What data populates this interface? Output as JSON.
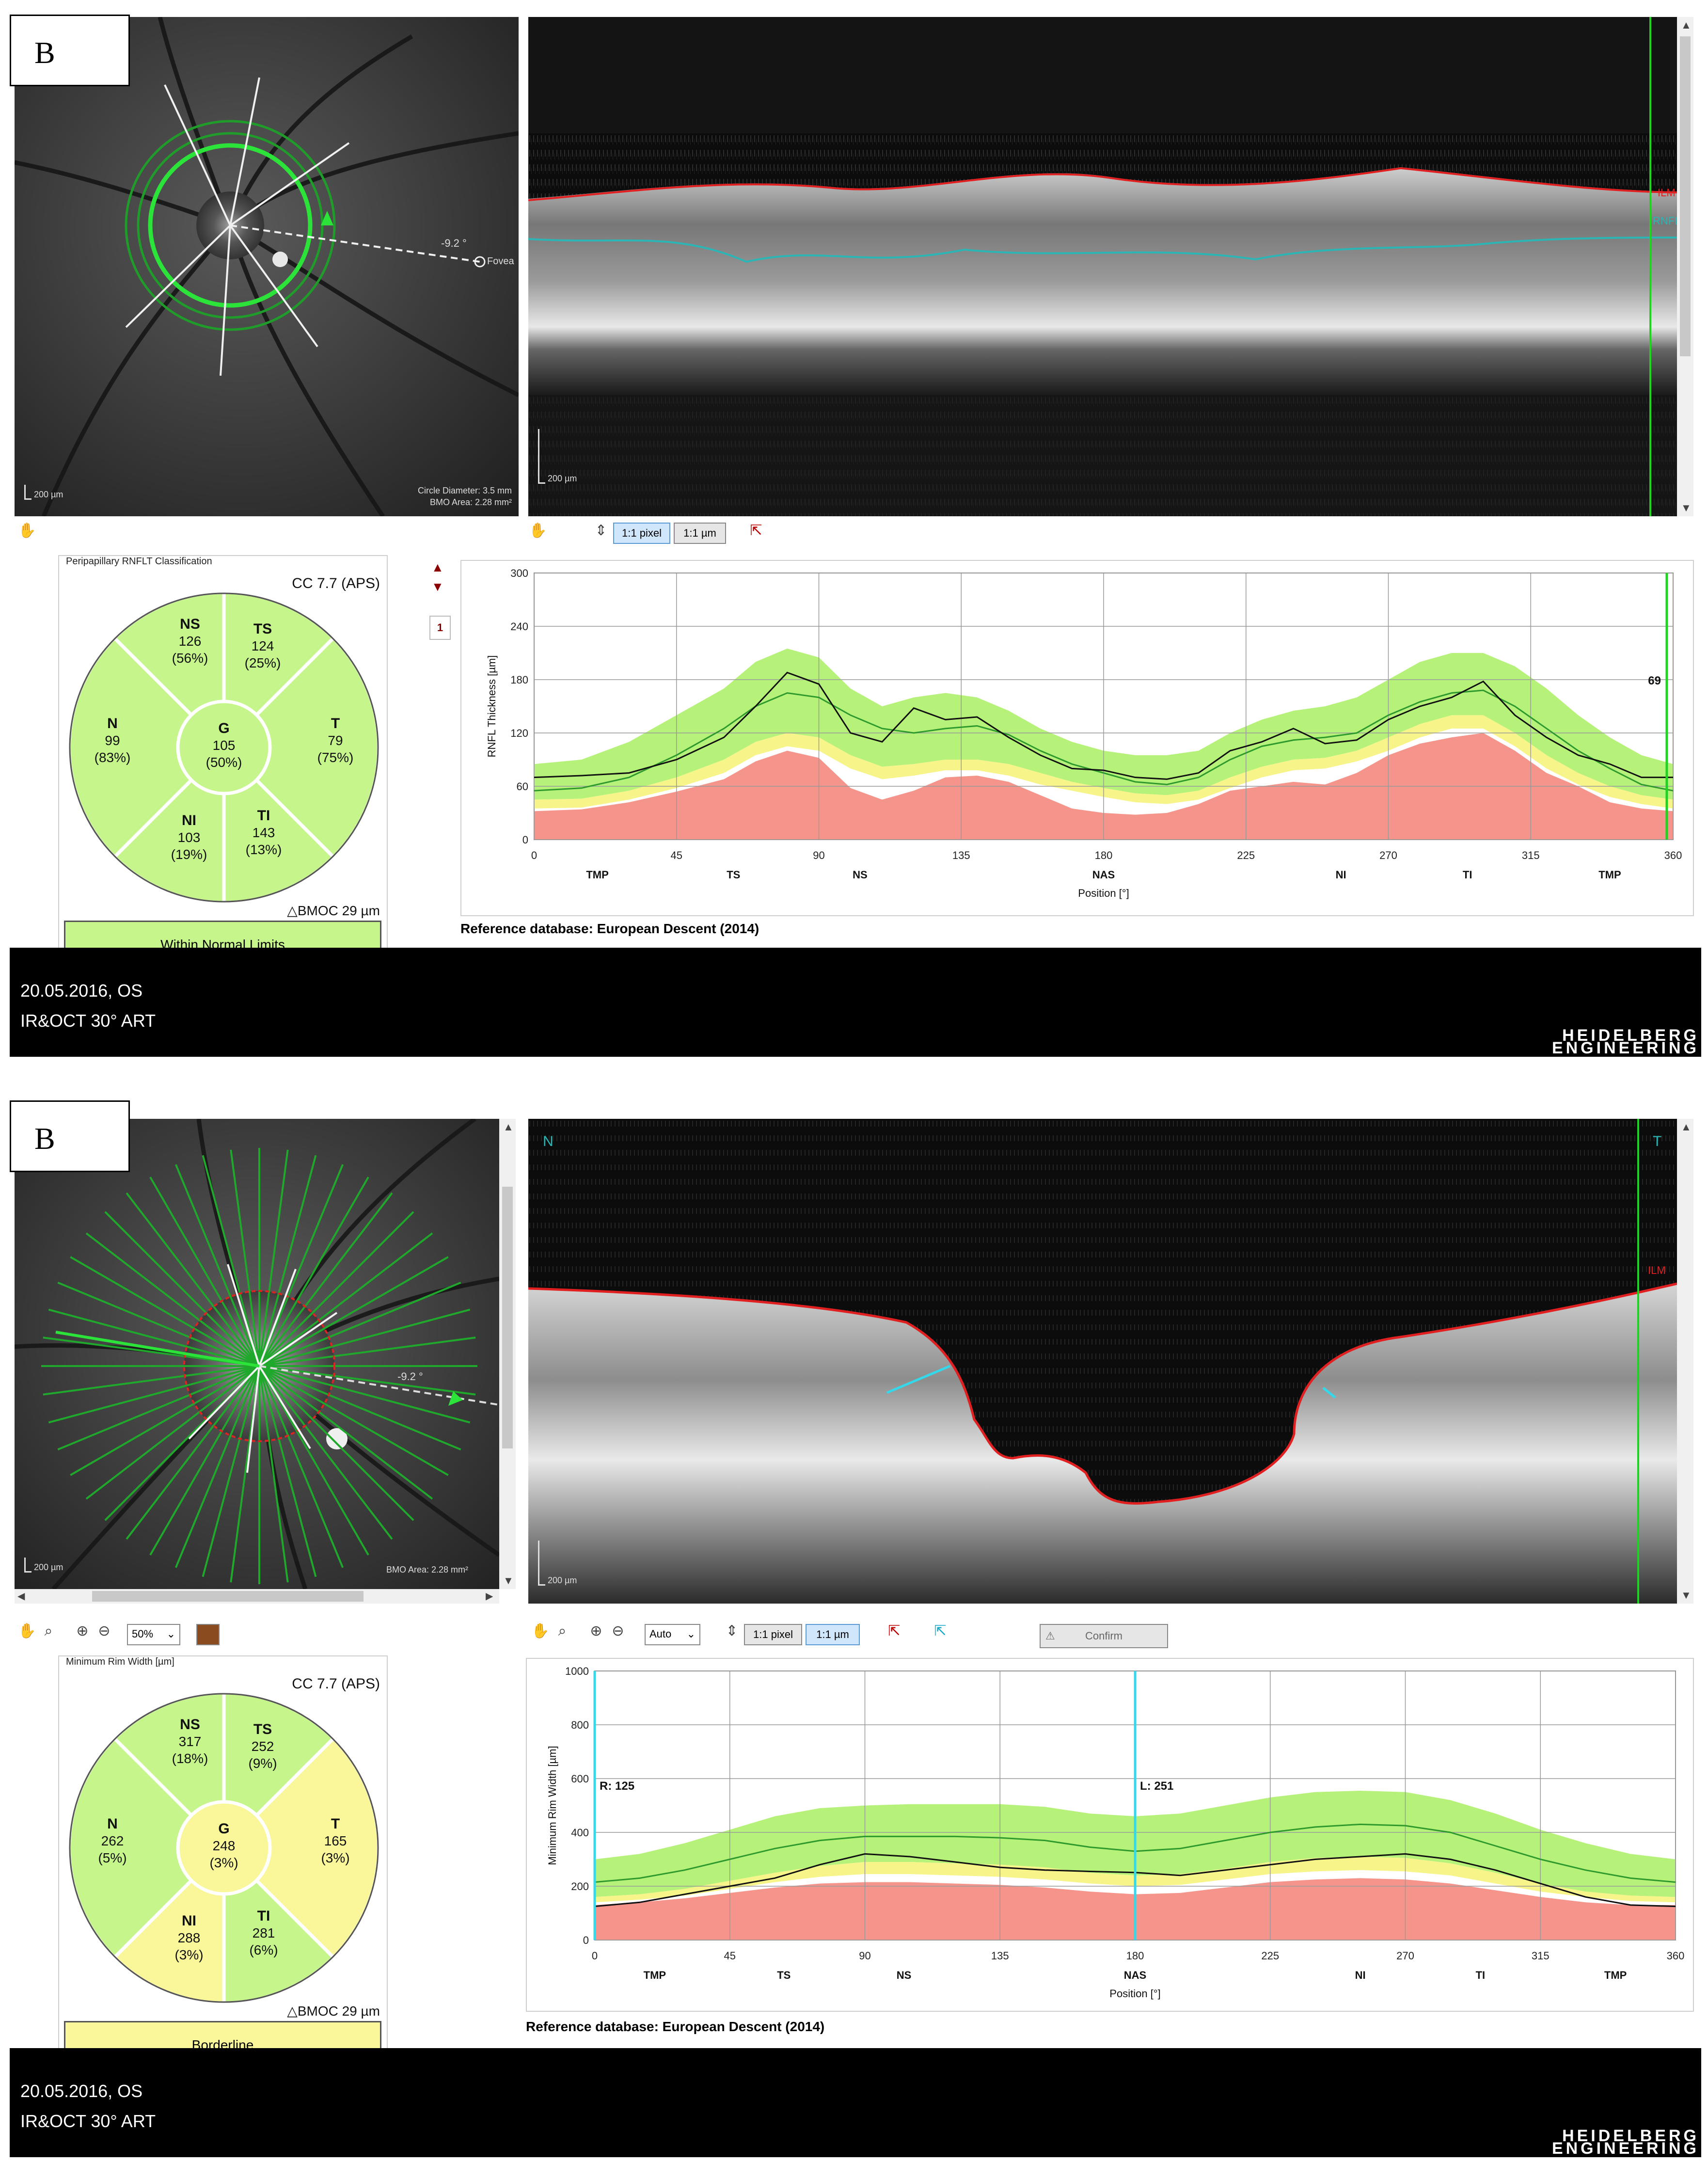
{
  "panels": [
    {
      "label": "B",
      "fundus": {
        "scale": "200 µm",
        "angle": "-9.2 °",
        "fovea_label": "Fovea",
        "info": [
          "Circle Diameter: 3.5 mm",
          "BMO Area: 2.28 mm²"
        ]
      },
      "oct": {
        "scale": "200 µm",
        "layer_labels": {
          "ilm": "ILM",
          "rnfl": "RNFL"
        }
      },
      "toolbar": {
        "pixel": "1:1 pixel",
        "micron": "1:1 µm"
      },
      "classification": {
        "title": "Peripapillary RNFLT Classification",
        "cc": "CC 7.7 (APS)",
        "bmoc": "BMOC 29 µm",
        "status": "Within Normal Limits",
        "status_color": "#c6f58c",
        "sectors": {
          "NS": {
            "name": "NS",
            "value": "126",
            "pct": "(56%)",
            "color": "#c6f58c"
          },
          "TS": {
            "name": "TS",
            "value": "124",
            "pct": "(25%)",
            "color": "#c6f58c"
          },
          "N": {
            "name": "N",
            "value": "99",
            "pct": "(83%)",
            "color": "#c6f58c"
          },
          "G": {
            "name": "G",
            "value": "105",
            "pct": "(50%)",
            "color": "#c6f58c"
          },
          "T": {
            "name": "T",
            "value": "79",
            "pct": "(75%)",
            "color": "#c6f58c"
          },
          "NI": {
            "name": "NI",
            "value": "103",
            "pct": "(19%)",
            "color": "#c6f58c"
          },
          "TI": {
            "name": "TI",
            "value": "143",
            "pct": "(13%)",
            "color": "#c6f58c"
          }
        }
      },
      "side_counter": "1",
      "reference": "Reference database: European Descent (2014)",
      "footer": {
        "date": "20.05.2016, OS",
        "mode": "IR&OCT 30° ART",
        "logo_top": "HEIDELBERG",
        "logo_bottom": "ENGINEERING"
      }
    },
    {
      "label": "B",
      "fundus": {
        "scale": "200 µm",
        "angle": "-9.2 °",
        "info": [
          "BMO Area: 2.28 mm²"
        ]
      },
      "oct": {
        "scale": "200 µm",
        "layer_labels": {
          "ilm": "ILM"
        },
        "nasal": "N",
        "temporal": "T"
      },
      "toolbar": {
        "zoom": "50%",
        "auto": "Auto",
        "pixel": "1:1 pixel",
        "micron": "1:1 µm",
        "confirm": "Confirm"
      },
      "classification": {
        "title": "Minimum Rim Width [µm]",
        "cc": "CC 7.7 (APS)",
        "bmoc": "BMOC 29 µm",
        "status": "Borderline",
        "status_color": "#f9f79a",
        "sectors": {
          "NS": {
            "name": "NS",
            "value": "317",
            "pct": "(18%)",
            "color": "#c6f58c"
          },
          "TS": {
            "name": "TS",
            "value": "252",
            "pct": "(9%)",
            "color": "#c6f58c"
          },
          "N": {
            "name": "N",
            "value": "262",
            "pct": "(5%)",
            "color": "#c6f58c"
          },
          "G": {
            "name": "G",
            "value": "248",
            "pct": "(3%)",
            "color": "#f9f79a"
          },
          "T": {
            "name": "T",
            "value": "165",
            "pct": "(3%)",
            "color": "#f9f79a"
          },
          "NI": {
            "name": "NI",
            "value": "288",
            "pct": "(3%)",
            "color": "#f9f79a"
          },
          "TI": {
            "name": "TI",
            "value": "281",
            "pct": "(6%)",
            "color": "#c6f58c"
          }
        }
      },
      "reference": "Reference database: European Descent (2014)",
      "footer": {
        "date": "20.05.2016, OS",
        "mode": "IR&OCT 30° ART",
        "logo_top": "HEIDELBERG",
        "logo_bottom": "ENGINEERING"
      }
    }
  ],
  "colors": {
    "green_band": "#b6f27a",
    "yellow_band": "#f7f48a",
    "red_band": "#f4948a",
    "ilm": "#e02020",
    "rnfl": "#2bb5b5",
    "cursor": "#21d321",
    "cyan_cursor": "#33d9ea"
  },
  "chart_data": [
    {
      "type": "line",
      "ylabel": "RNFL Thickness [µm]",
      "xlabel": "Position [°]",
      "ylim": [
        0,
        300
      ],
      "xlim": [
        0,
        360
      ],
      "x_ticks": [
        0,
        45,
        90,
        135,
        180,
        225,
        270,
        315,
        360
      ],
      "y_ticks": [
        0,
        60,
        120,
        180,
        240,
        300
      ],
      "regions": [
        {
          "label": "TMP",
          "x": 20
        },
        {
          "label": "TS",
          "x": 63
        },
        {
          "label": "NS",
          "x": 103
        },
        {
          "label": "NAS",
          "x": 180
        },
        {
          "label": "NI",
          "x": 255
        },
        {
          "label": "TI",
          "x": 295
        },
        {
          "label": "TMP",
          "x": 340
        }
      ],
      "cursor": {
        "x": 358,
        "label": "69"
      },
      "x": [
        0,
        15,
        30,
        45,
        60,
        70,
        80,
        90,
        100,
        110,
        120,
        130,
        140,
        150,
        160,
        170,
        180,
        190,
        200,
        210,
        220,
        230,
        240,
        250,
        260,
        270,
        280,
        290,
        300,
        310,
        320,
        330,
        340,
        350,
        360
      ],
      "series": [
        {
          "name": "",
          "values": [
            70,
            72,
            75,
            90,
            115,
            150,
            188,
            175,
            120,
            110,
            148,
            135,
            138,
            115,
            95,
            80,
            78,
            70,
            68,
            75,
            100,
            110,
            125,
            108,
            112,
            135,
            150,
            160,
            178,
            140,
            115,
            95,
            85,
            70,
            70
          ]
        },
        {
          "name": "mean",
          "values": [
            55,
            58,
            70,
            95,
            125,
            150,
            165,
            160,
            140,
            125,
            120,
            125,
            128,
            118,
            100,
            85,
            75,
            65,
            62,
            70,
            90,
            105,
            112,
            115,
            120,
            140,
            155,
            165,
            168,
            150,
            125,
            100,
            80,
            62,
            55
          ]
        },
        {
          "name": "green_upper",
          "values": [
            85,
            90,
            110,
            140,
            170,
            200,
            215,
            205,
            170,
            150,
            160,
            165,
            160,
            145,
            125,
            110,
            100,
            95,
            95,
            100,
            120,
            135,
            145,
            150,
            160,
            180,
            200,
            210,
            210,
            195,
            170,
            140,
            115,
            95,
            85
          ]
        },
        {
          "name": "green_lower",
          "values": [
            45,
            46,
            55,
            70,
            90,
            110,
            120,
            115,
            95,
            82,
            85,
            90,
            90,
            85,
            75,
            65,
            58,
            52,
            50,
            55,
            70,
            82,
            90,
            92,
            100,
            115,
            130,
            140,
            140,
            120,
            95,
            75,
            60,
            50,
            45
          ]
        },
        {
          "name": "yellow_lower",
          "values": [
            35,
            36,
            45,
            58,
            75,
            95,
            105,
            100,
            80,
            68,
            72,
            78,
            78,
            72,
            62,
            55,
            48,
            42,
            40,
            45,
            58,
            70,
            78,
            80,
            88,
            100,
            115,
            125,
            125,
            105,
            80,
            62,
            48,
            40,
            35
          ]
        },
        {
          "name": "red_upper",
          "values": [
            32,
            34,
            42,
            54,
            68,
            88,
            100,
            92,
            58,
            45,
            55,
            70,
            72,
            65,
            50,
            35,
            30,
            28,
            30,
            40,
            55,
            60,
            65,
            62,
            75,
            95,
            108,
            115,
            120,
            100,
            75,
            60,
            42,
            35,
            32
          ]
        }
      ]
    },
    {
      "type": "line",
      "ylabel": "Minimum Rim Width [µm]",
      "xlabel": "Position [°]",
      "ylim": [
        0,
        1000
      ],
      "xlim": [
        0,
        360
      ],
      "x_ticks": [
        0,
        45,
        90,
        135,
        180,
        225,
        270,
        315,
        360
      ],
      "y_ticks": [
        0,
        200,
        400,
        600,
        800,
        1000
      ],
      "regions": [
        {
          "label": "TMP",
          "x": 20
        },
        {
          "label": "TS",
          "x": 63
        },
        {
          "label": "NS",
          "x": 103
        },
        {
          "label": "NAS",
          "x": 180
        },
        {
          "label": "NI",
          "x": 255
        },
        {
          "label": "TI",
          "x": 295
        },
        {
          "label": "TMP",
          "x": 340
        }
      ],
      "cursors": [
        {
          "x": 0,
          "label": "R: 125"
        },
        {
          "x": 180,
          "label": "L: 251"
        }
      ],
      "x": [
        0,
        15,
        30,
        45,
        60,
        75,
        90,
        105,
        120,
        135,
        150,
        165,
        180,
        195,
        210,
        225,
        240,
        255,
        270,
        285,
        300,
        315,
        330,
        345,
        360
      ],
      "series": [
        {
          "name": "",
          "values": [
            125,
            140,
            170,
            200,
            230,
            280,
            320,
            310,
            290,
            270,
            260,
            255,
            251,
            240,
            260,
            280,
            300,
            310,
            320,
            300,
            260,
            210,
            160,
            130,
            125
          ]
        },
        {
          "name": "mean",
          "values": [
            215,
            230,
            260,
            300,
            340,
            370,
            385,
            385,
            385,
            380,
            370,
            345,
            330,
            340,
            370,
            400,
            420,
            430,
            425,
            400,
            350,
            300,
            260,
            230,
            215
          ]
        },
        {
          "name": "green_upper",
          "values": [
            300,
            320,
            360,
            410,
            460,
            490,
            500,
            505,
            505,
            505,
            495,
            470,
            460,
            470,
            500,
            530,
            550,
            555,
            550,
            520,
            470,
            410,
            360,
            320,
            300
          ]
        },
        {
          "name": "green_lower",
          "values": [
            160,
            170,
            190,
            220,
            250,
            275,
            290,
            290,
            285,
            280,
            270,
            250,
            240,
            245,
            265,
            290,
            305,
            310,
            305,
            285,
            250,
            210,
            180,
            165,
            160
          ]
        },
        {
          "name": "yellow_lower",
          "values": [
            140,
            150,
            165,
            190,
            215,
            235,
            245,
            245,
            240,
            235,
            225,
            210,
            200,
            205,
            225,
            245,
            255,
            260,
            255,
            240,
            210,
            180,
            160,
            145,
            140
          ]
        },
        {
          "name": "red_upper",
          "values": [
            130,
            140,
            155,
            175,
            195,
            210,
            215,
            215,
            210,
            205,
            195,
            180,
            170,
            175,
            195,
            215,
            225,
            230,
            225,
            210,
            185,
            160,
            140,
            130,
            130
          ]
        }
      ]
    }
  ]
}
